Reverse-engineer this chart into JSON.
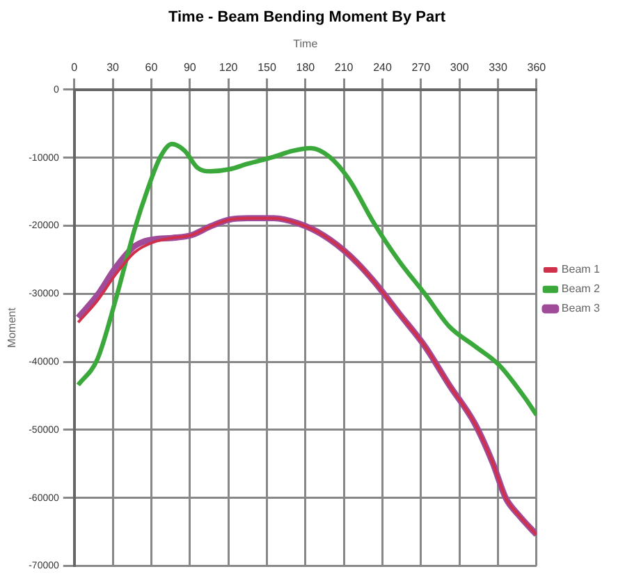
{
  "chart_data": {
    "type": "line",
    "title": "Time - Beam Bending Moment By Part",
    "xlabel": "Time",
    "ylabel": "Moment",
    "xlim": [
      0,
      360
    ],
    "xticks": [
      0,
      30,
      60,
      90,
      120,
      150,
      180,
      210,
      240,
      270,
      300,
      330,
      360
    ],
    "ylim": [
      -70000,
      0
    ],
    "yticks": [
      0,
      -10000,
      -20000,
      -30000,
      -40000,
      -50000,
      -60000,
      -70000
    ],
    "grid": true,
    "legend": "right",
    "marker": "none",
    "line_style": "solid",
    "series": [
      {
        "name": "Beam 1",
        "color": "#d0304a",
        "x": [
          3,
          18,
          32,
          47,
          62,
          76,
          91,
          106,
          121,
          135,
          155,
          175,
          194,
          214,
          233,
          253,
          273,
          292,
          312,
          326,
          336,
          346,
          360
        ],
        "values": [
          -34200,
          -31000,
          -27200,
          -23900,
          -22400,
          -21800,
          -21400,
          -20100,
          -19100,
          -18900,
          -18900,
          -19700,
          -21400,
          -24300,
          -28100,
          -32900,
          -37700,
          -43400,
          -49100,
          -54900,
          -60000,
          -62500,
          -65400
        ]
      },
      {
        "name": "Beam 2",
        "color": "#3aa83a",
        "x": [
          3,
          18,
          32,
          47,
          57,
          67,
          76,
          86,
          96,
          106,
          121,
          135,
          155,
          170,
          184,
          199,
          214,
          233,
          253,
          273,
          292,
          312,
          331,
          351,
          360
        ],
        "values": [
          -43400,
          -39600,
          -31000,
          -20500,
          -14700,
          -9900,
          -8000,
          -9000,
          -11500,
          -12000,
          -11700,
          -10900,
          -9900,
          -9000,
          -8600,
          -9900,
          -13200,
          -19500,
          -25200,
          -30000,
          -34800,
          -37700,
          -40500,
          -45300,
          -47800
        ]
      },
      {
        "name": "Beam 3",
        "color": "#a04a9a",
        "x": [
          3,
          18,
          32,
          47,
          62,
          76,
          91,
          106,
          121,
          135,
          155,
          175,
          194,
          214,
          233,
          253,
          273,
          292,
          312,
          326,
          336,
          346,
          360
        ],
        "values": [
          -33500,
          -30200,
          -26200,
          -23000,
          -22000,
          -21800,
          -21400,
          -20100,
          -19100,
          -18900,
          -18900,
          -19700,
          -21400,
          -24300,
          -28100,
          -32900,
          -37700,
          -43400,
          -49100,
          -54900,
          -60000,
          -62500,
          -65400
        ]
      }
    ]
  }
}
